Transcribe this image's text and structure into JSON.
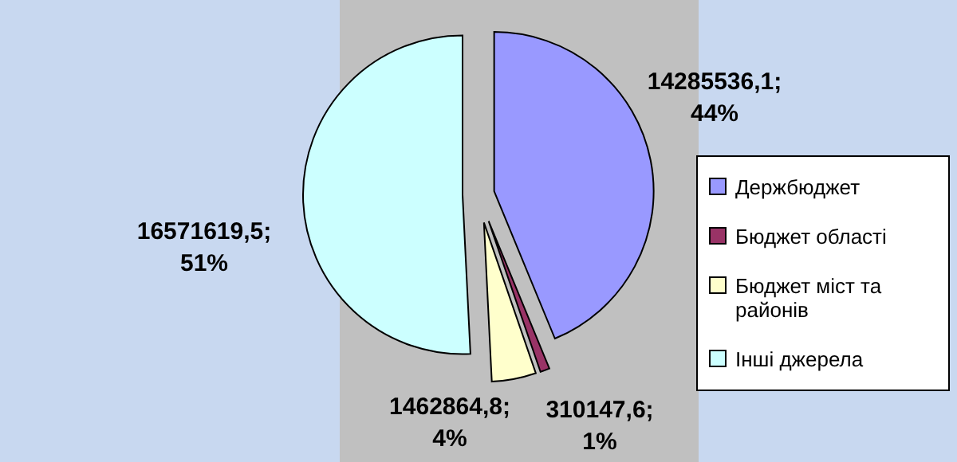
{
  "chart_data": {
    "type": "pie",
    "categories": [
      "Держбюджет",
      "Бюджет області",
      "Бюджет міст та районів",
      "Інші джерела"
    ],
    "values": [
      14285536.1,
      310147.6,
      1462864.8,
      16571619.5
    ],
    "colors": [
      "#9999ff",
      "#993366",
      "#ffffcc",
      "#ccffff"
    ],
    "value_labels": [
      "14285536,1;\n44%",
      "310147,6;\n1%",
      "1462864,8;\n4%",
      "16571619,5;\n51%"
    ],
    "legend": "right"
  }
}
